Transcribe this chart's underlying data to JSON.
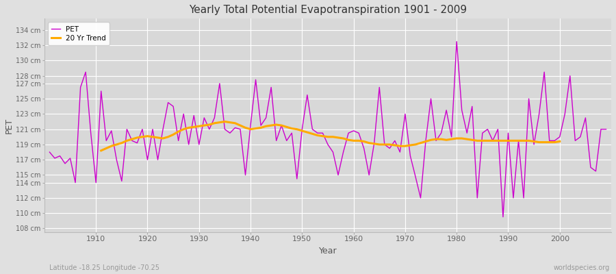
{
  "title": "Yearly Total Potential Evapotranspiration 1901 - 2009",
  "xlabel": "Year",
  "ylabel": "PET",
  "subtitle_left": "Latitude -18.25 Longitude -70.25",
  "subtitle_right": "worldspecies.org",
  "ylim": [
    107.5,
    135.5
  ],
  "yticks": [
    108,
    110,
    112,
    114,
    115,
    117,
    119,
    121,
    123,
    125,
    127,
    128,
    130,
    132,
    134
  ],
  "xlim": [
    1900,
    2010
  ],
  "xticks": [
    1910,
    1920,
    1930,
    1940,
    1950,
    1960,
    1970,
    1980,
    1990,
    2000
  ],
  "pet_color": "#cc00cc",
  "trend_color": "#ffaa00",
  "bg_color": "#e0e0e0",
  "plot_bg_color": "#d8d8d8",
  "grid_color": "#ffffff",
  "years": [
    1901,
    1902,
    1903,
    1904,
    1905,
    1906,
    1907,
    1908,
    1909,
    1910,
    1911,
    1912,
    1913,
    1914,
    1915,
    1916,
    1917,
    1918,
    1919,
    1920,
    1921,
    1922,
    1923,
    1924,
    1925,
    1926,
    1927,
    1928,
    1929,
    1930,
    1931,
    1932,
    1933,
    1934,
    1935,
    1936,
    1937,
    1938,
    1939,
    1940,
    1941,
    1942,
    1943,
    1944,
    1945,
    1946,
    1947,
    1948,
    1949,
    1950,
    1951,
    1952,
    1953,
    1954,
    1955,
    1956,
    1957,
    1958,
    1959,
    1960,
    1961,
    1962,
    1963,
    1964,
    1965,
    1966,
    1967,
    1968,
    1969,
    1970,
    1971,
    1972,
    1973,
    1974,
    1975,
    1976,
    1977,
    1978,
    1979,
    1980,
    1981,
    1982,
    1983,
    1984,
    1985,
    1986,
    1987,
    1988,
    1989,
    1990,
    1991,
    1992,
    1993,
    1994,
    1995,
    1996,
    1997,
    1998,
    1999,
    2000,
    2001,
    2002,
    2003,
    2004,
    2005,
    2006,
    2007,
    2008,
    2009
  ],
  "pet": [
    118.0,
    117.2,
    117.5,
    116.5,
    117.2,
    114.0,
    126.5,
    128.5,
    120.5,
    114.0,
    126.0,
    119.5,
    120.8,
    117.0,
    114.2,
    121.0,
    119.5,
    119.2,
    121.0,
    117.0,
    121.0,
    117.0,
    121.0,
    124.5,
    124.0,
    119.5,
    123.0,
    119.0,
    122.8,
    119.0,
    122.5,
    121.0,
    122.5,
    127.0,
    121.0,
    120.5,
    121.2,
    121.0,
    115.0,
    121.5,
    127.5,
    121.5,
    122.5,
    126.5,
    119.5,
    121.5,
    119.5,
    120.5,
    114.5,
    121.0,
    125.5,
    121.0,
    120.5,
    120.5,
    119.0,
    118.0,
    115.0,
    118.0,
    120.5,
    120.8,
    120.5,
    118.5,
    115.0,
    119.2,
    126.5,
    119.0,
    118.5,
    119.5,
    118.0,
    123.0,
    117.5,
    114.8,
    112.0,
    119.5,
    125.0,
    119.5,
    120.5,
    123.5,
    120.0,
    132.5,
    123.5,
    120.5,
    124.0,
    112.0,
    120.5,
    121.0,
    119.5,
    121.0,
    109.5,
    120.5,
    112.0,
    119.5,
    112.0,
    125.0,
    119.0,
    123.0,
    128.5,
    119.5,
    119.5,
    120.0,
    123.0,
    128.0,
    119.5,
    120.0,
    122.5,
    116.0,
    115.5,
    121.0,
    121.0
  ],
  "trend_years": [
    1911,
    1912,
    1913,
    1914,
    1915,
    1916,
    1917,
    1918,
    1919,
    1920,
    1921,
    1922,
    1923,
    1924,
    1925,
    1926,
    1927,
    1928,
    1929,
    1930,
    1931,
    1932,
    1933,
    1934,
    1935,
    1936,
    1937,
    1938,
    1939,
    1940,
    1941,
    1942,
    1943,
    1944,
    1945,
    1946,
    1947,
    1948,
    1949,
    1950,
    1951,
    1952,
    1953,
    1954,
    1955,
    1956,
    1957,
    1958,
    1959,
    1960,
    1961,
    1962,
    1963,
    1964,
    1965,
    1966,
    1967,
    1968,
    1969,
    1970,
    1971,
    1972,
    1973,
    1974,
    1975,
    1976,
    1977,
    1978,
    1979,
    1980,
    1981,
    1982,
    1983,
    1984,
    1985,
    1986,
    1987,
    1988,
    1989,
    1990,
    1991,
    1992,
    1993,
    1994,
    1995,
    1996,
    1997,
    1998,
    1999,
    2000
  ],
  "trend": [
    118.2,
    118.5,
    118.8,
    119.0,
    119.2,
    119.5,
    119.7,
    119.9,
    120.0,
    120.1,
    120.0,
    119.9,
    119.8,
    120.0,
    120.3,
    120.7,
    121.0,
    121.2,
    121.3,
    121.4,
    121.5,
    121.6,
    121.8,
    121.9,
    122.0,
    121.9,
    121.8,
    121.5,
    121.2,
    121.0,
    121.1,
    121.2,
    121.4,
    121.5,
    121.6,
    121.5,
    121.3,
    121.1,
    121.0,
    120.8,
    120.6,
    120.4,
    120.2,
    120.1,
    120.0,
    120.0,
    119.9,
    119.8,
    119.6,
    119.5,
    119.5,
    119.4,
    119.2,
    119.1,
    119.0,
    119.0,
    119.0,
    118.9,
    118.8,
    118.8,
    118.9,
    119.0,
    119.2,
    119.4,
    119.6,
    119.7,
    119.7,
    119.6,
    119.7,
    119.8,
    119.8,
    119.7,
    119.6,
    119.5,
    119.5,
    119.5,
    119.5,
    119.5,
    119.5,
    119.5,
    119.5,
    119.5,
    119.5,
    119.5,
    119.4,
    119.3,
    119.3,
    119.3,
    119.3,
    119.4
  ]
}
